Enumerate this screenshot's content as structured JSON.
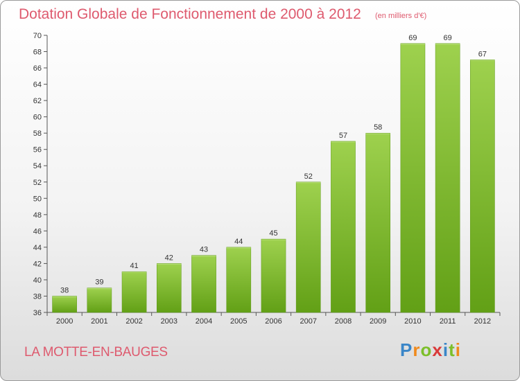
{
  "header": {
    "title": "Dotation Globale de Fonctionnement de 2000 à 2012",
    "unit": "(en milliers d'€)"
  },
  "footer": {
    "commune": "LA MOTTE-EN-BAUGES",
    "logo_letters": [
      {
        "ch": "P",
        "color": "#3a86c8"
      },
      {
        "ch": "r",
        "color": "#f08a1c"
      },
      {
        "ch": "o",
        "color": "#7cbf2a"
      },
      {
        "ch": "x",
        "color": "#d93a3a"
      },
      {
        "ch": "i",
        "color": "#3a86c8"
      },
      {
        "ch": "t",
        "color": "#7cbf2a"
      },
      {
        "ch": "i",
        "color": "#f08a1c"
      }
    ]
  },
  "chart_data": {
    "type": "bar",
    "title": "Dotation Globale de Fonctionnement de 2000 à 2012",
    "subtitle": "(en milliers d'€)",
    "categories": [
      "2000",
      "2001",
      "2002",
      "2003",
      "2004",
      "2005",
      "2006",
      "2007",
      "2008",
      "2009",
      "2010",
      "2011",
      "2012"
    ],
    "values": [
      38,
      39,
      41,
      42,
      43,
      44,
      45,
      52,
      57,
      58,
      69,
      69,
      67
    ],
    "ylim": [
      36,
      70
    ],
    "ytick_step": 2,
    "grid": false,
    "bar_color_top": "#9ed14e",
    "bar_color_bottom": "#62a016"
  }
}
